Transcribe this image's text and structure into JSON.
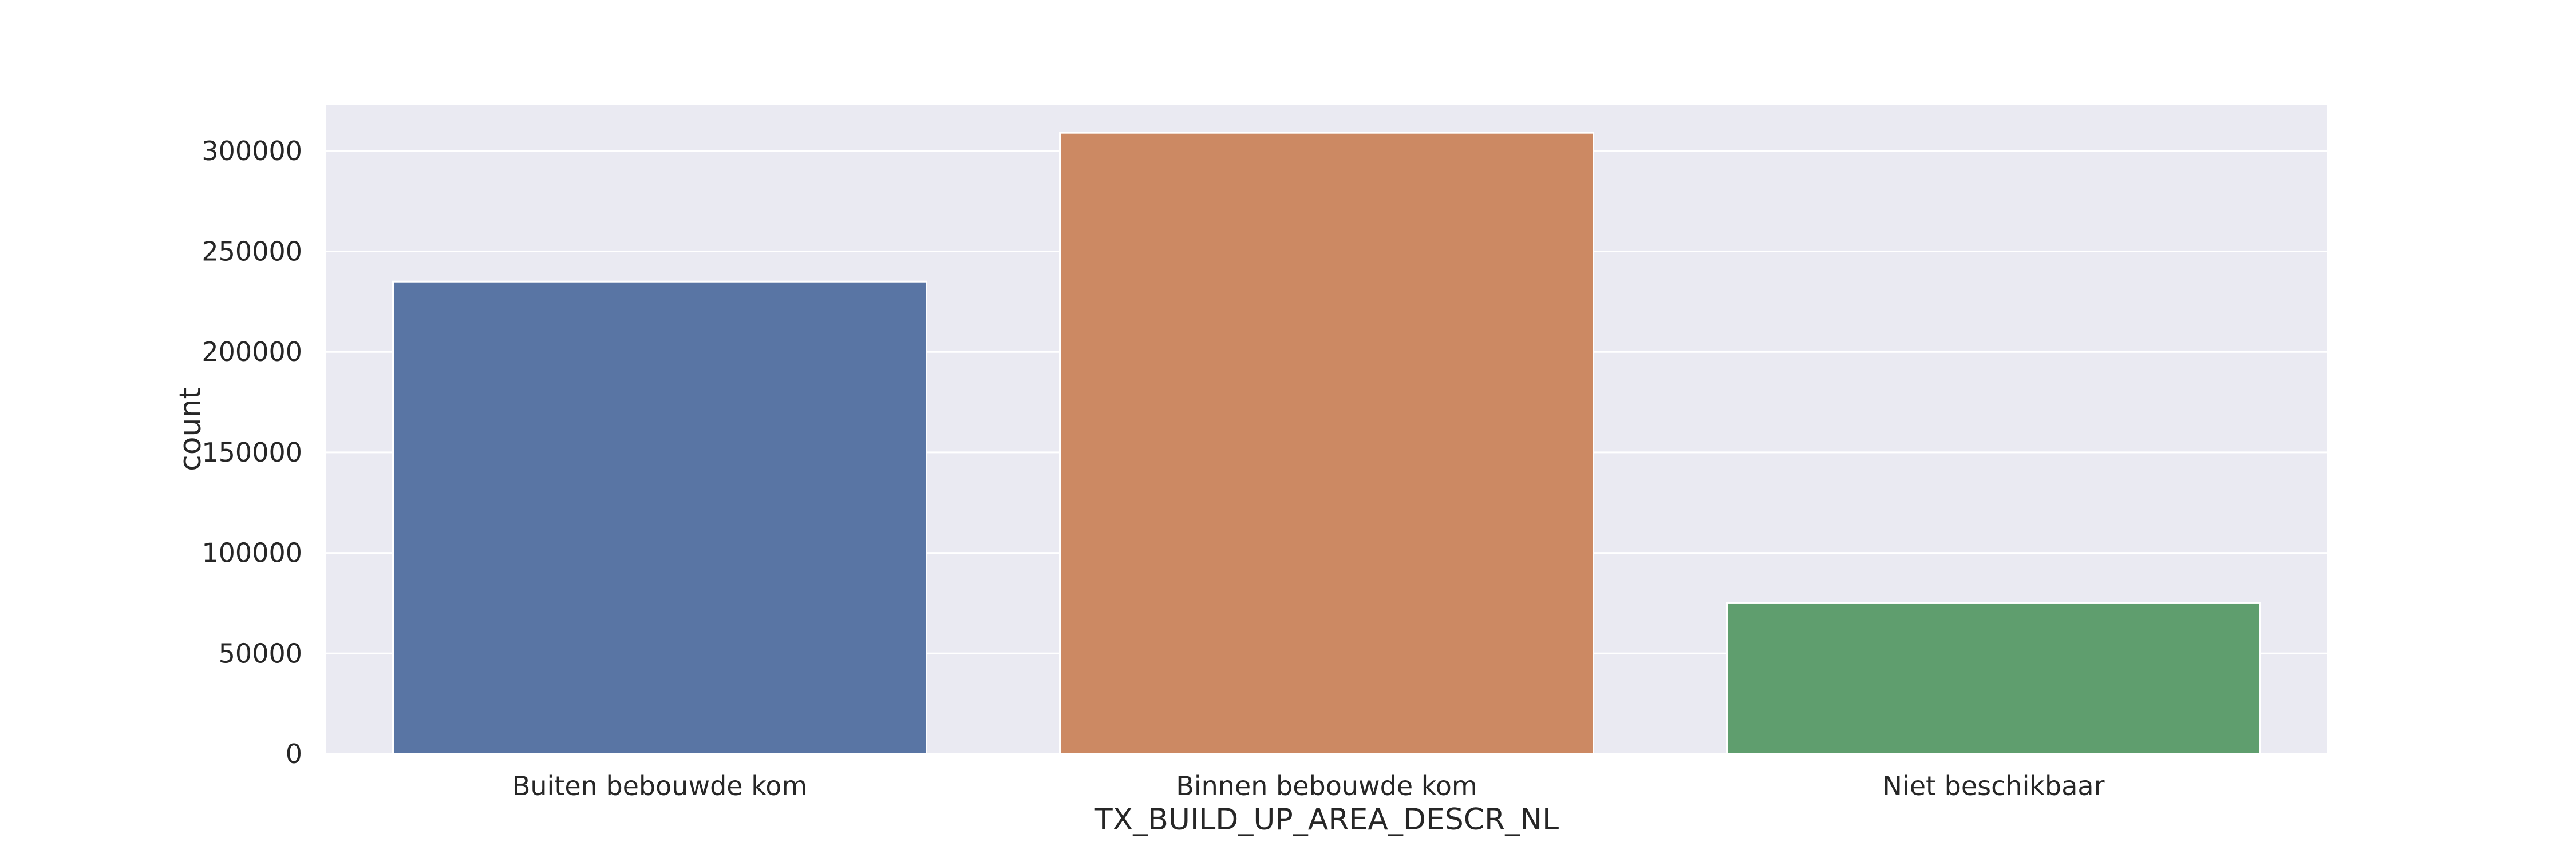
{
  "chart_data": {
    "type": "bar",
    "title": "",
    "xlabel": "TX_BUILD_UP_AREA_DESCR_NL",
    "ylabel": "count",
    "categories": [
      "Buiten bebouwde kom",
      "Binnen bebouwde kom",
      "Niet beschikbaar"
    ],
    "values": [
      235000,
      309000,
      75000
    ],
    "ylim": [
      0,
      323000
    ],
    "yticks": [
      0,
      50000,
      100000,
      150000,
      200000,
      250000,
      300000
    ],
    "ytick_labels": [
      "0",
      "50000",
      "100000",
      "150000",
      "200000",
      "250000",
      "300000"
    ],
    "grid": true,
    "legend": "none",
    "colors": [
      "#5975a4",
      "#cc8963",
      "#5f9e6e"
    ],
    "background": "#eaeaf2",
    "grid_color": "#ffffff"
  }
}
